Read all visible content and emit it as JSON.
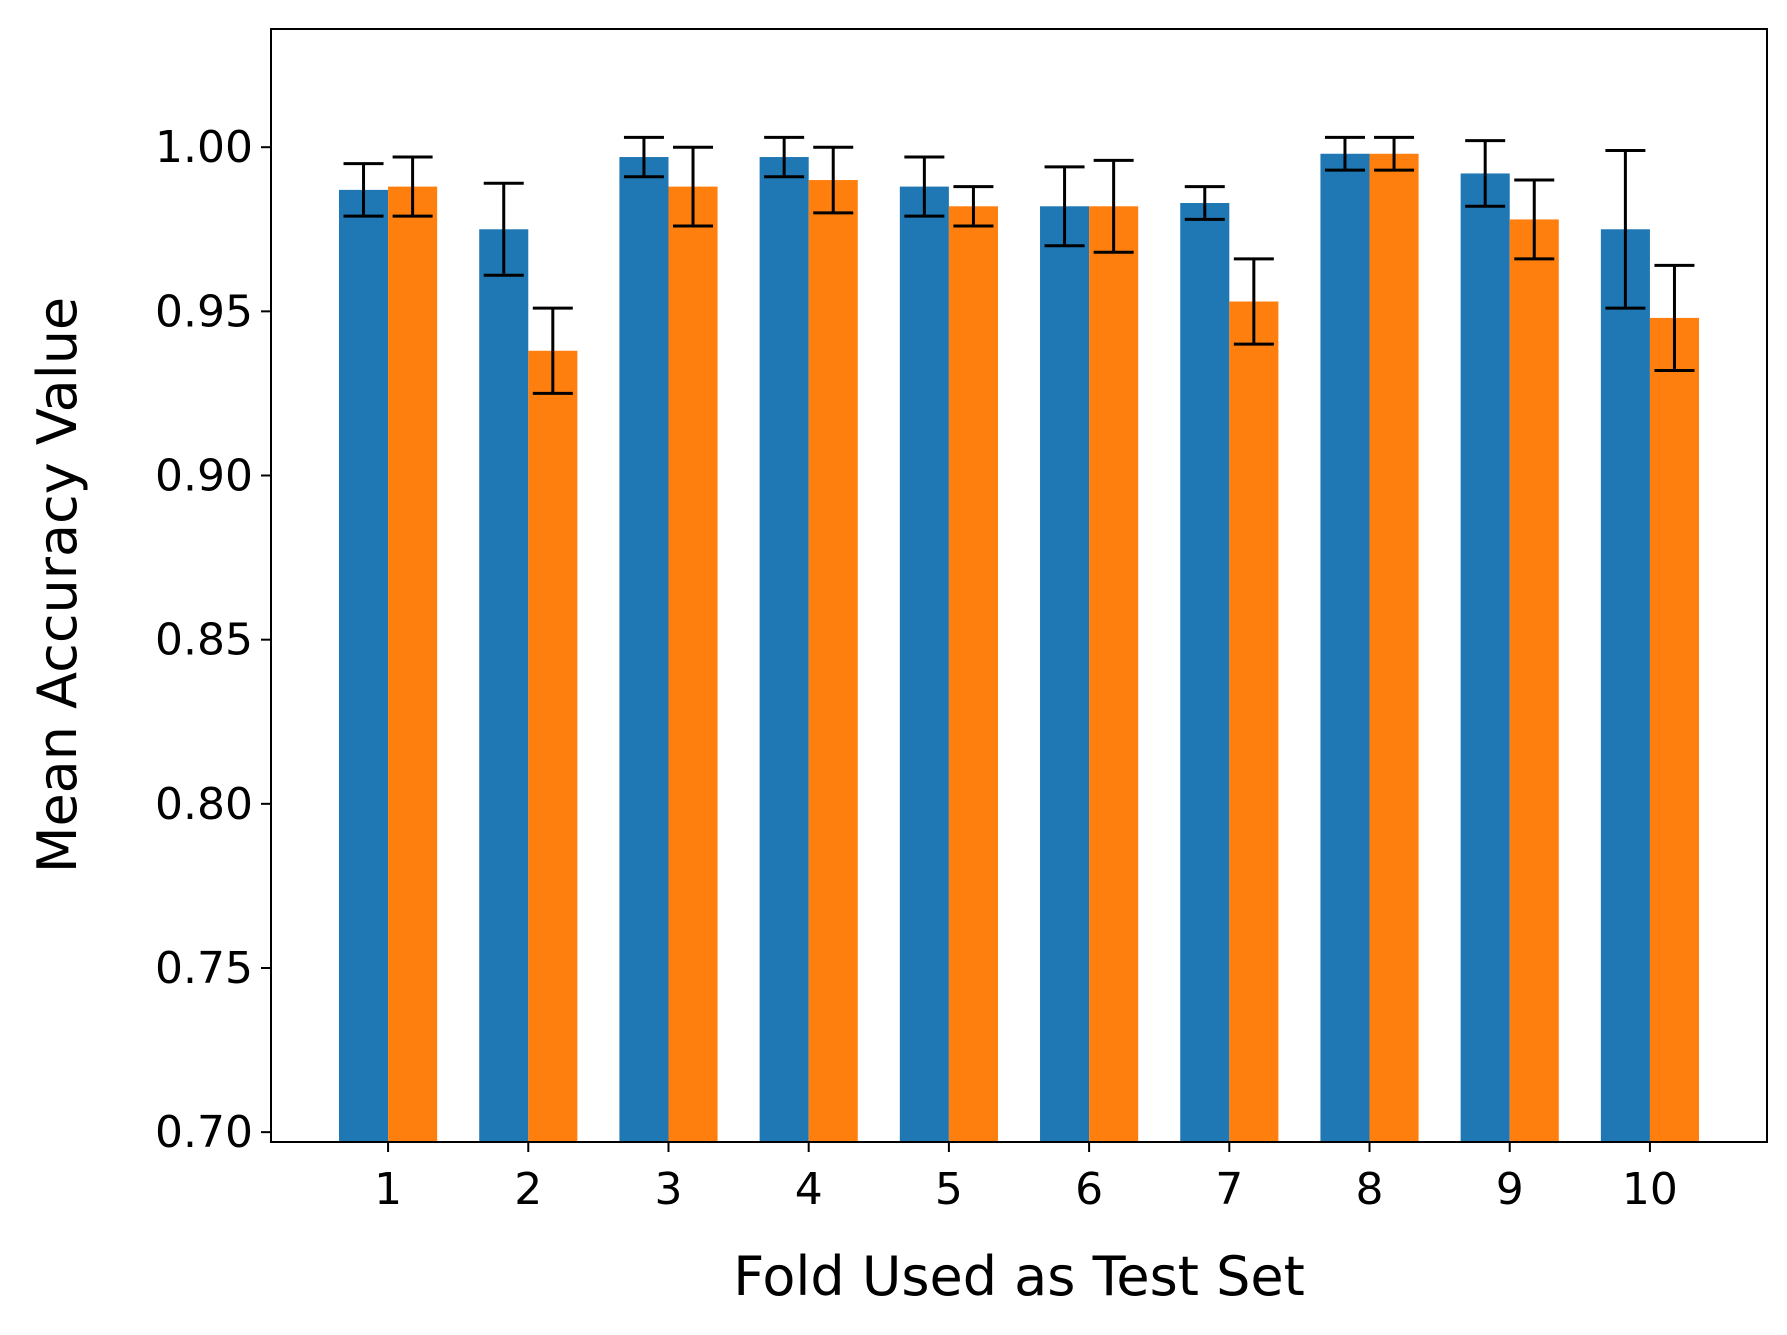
{
  "chart_data": {
    "type": "bar",
    "title": "",
    "xlabel": "Fold Used as Test Set",
    "ylabel": "Mean Accuracy Value",
    "categories": [
      "1",
      "2",
      "3",
      "4",
      "5",
      "6",
      "7",
      "8",
      "9",
      "10"
    ],
    "ylim": [
      0.697,
      1.036
    ],
    "yticks": [
      0.7,
      0.75,
      0.8,
      0.85,
      0.9,
      0.95,
      1.0
    ],
    "ytick_labels": [
      "0.70",
      "0.75",
      "0.80",
      "0.85",
      "0.90",
      "0.95",
      "1.00"
    ],
    "grid": false,
    "legend": null,
    "series": [
      {
        "name": "series-1",
        "color": "#1f77b4",
        "values": [
          0.987,
          0.975,
          0.997,
          0.997,
          0.988,
          0.982,
          0.983,
          0.998,
          0.992,
          0.975
        ],
        "errors": [
          0.008,
          0.014,
          0.006,
          0.006,
          0.009,
          0.012,
          0.005,
          0.005,
          0.01,
          0.024
        ]
      },
      {
        "name": "series-2",
        "color": "#ff7f0e",
        "values": [
          0.988,
          0.938,
          0.988,
          0.99,
          0.982,
          0.982,
          0.953,
          0.998,
          0.978,
          0.948
        ],
        "errors": [
          0.009,
          0.013,
          0.012,
          0.01,
          0.006,
          0.014,
          0.013,
          0.005,
          0.012,
          0.016
        ]
      }
    ]
  }
}
